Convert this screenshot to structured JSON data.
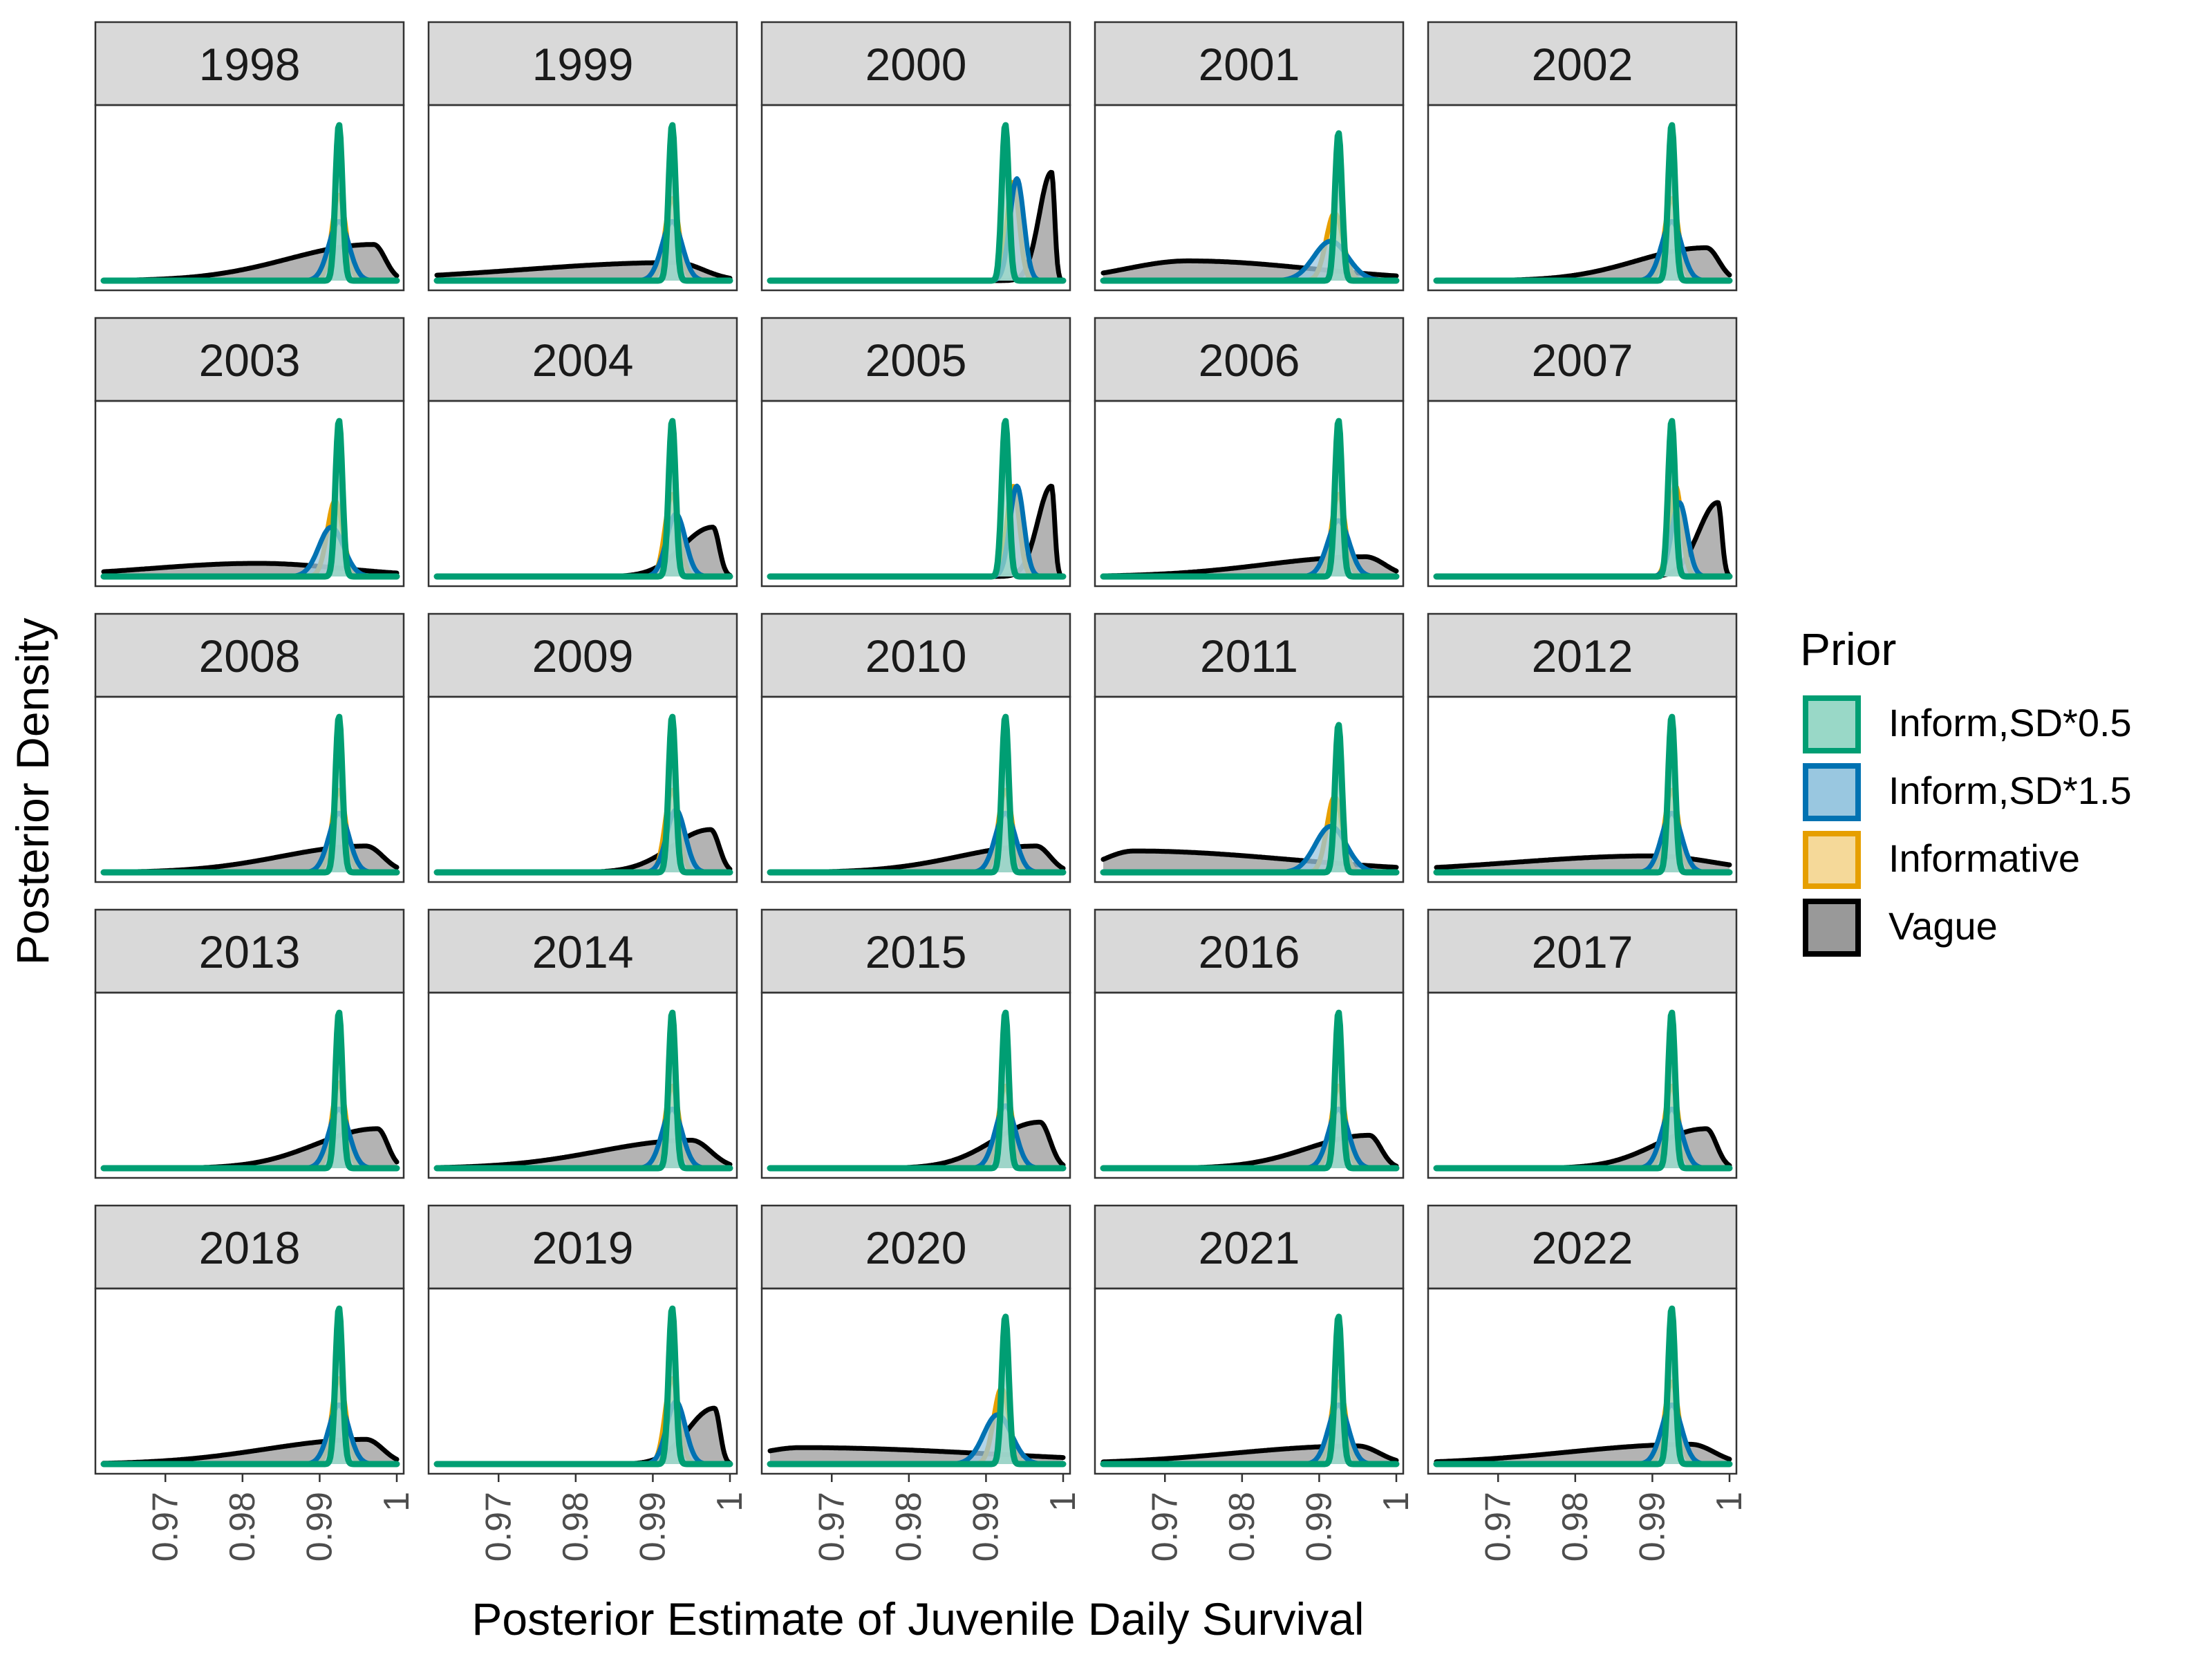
{
  "chart_data": {
    "type": "area",
    "subtype": "faceted-density",
    "title": "",
    "xlabel": "Posterior Estimate of Juvenile Daily Survival",
    "ylabel": "Posterior Density",
    "xlim": [
      0.962,
      1.0
    ],
    "x_ticks": [
      0.97,
      0.98,
      0.99,
      1.0
    ],
    "x_tick_labels": [
      "0.97",
      "0.98",
      "0.99",
      "1"
    ],
    "y_ticks_shown": false,
    "grid": false,
    "legend": {
      "title": "Prior",
      "position": "right",
      "entries": [
        "Inform,SD*0.5",
        "Inform,SD*1.5",
        "Informative",
        "Vague"
      ]
    },
    "series_colors": {
      "Inform,SD*0.5": {
        "line": "#009E73",
        "fill": "#99D8C7"
      },
      "Inform,SD*1.5": {
        "line": "#0072B2",
        "fill": "#99C7E0"
      },
      "Informative": {
        "line": "#E69F00",
        "fill": "#F5D999"
      },
      "Vague": {
        "line": "#000000",
        "fill": "#999999"
      }
    },
    "facet_layout": {
      "columns": 5,
      "rows": 5
    },
    "facets": [
      {
        "label": "1998",
        "series": [
          {
            "name": "Inform,SD*0.5",
            "mode": 0.9925,
            "sd": 0.00045,
            "peak": 0.95
          },
          {
            "name": "Inform,SD*1.5",
            "mode": 0.9925,
            "sd": 0.0013,
            "peak": 0.36
          },
          {
            "name": "Informative",
            "mode": 0.9925,
            "sd": 0.0009,
            "peak": 0.52
          },
          {
            "name": "Vague",
            "mode": 0.997,
            "sdL": 0.011,
            "sdR": 0.0015,
            "peak": 0.22
          }
        ]
      },
      {
        "label": "1999",
        "series": [
          {
            "name": "Inform,SD*0.5",
            "mode": 0.9925,
            "sd": 0.00045,
            "peak": 0.95
          },
          {
            "name": "Inform,SD*1.5",
            "mode": 0.9925,
            "sd": 0.0013,
            "peak": 0.36
          },
          {
            "name": "Informative",
            "mode": 0.9925,
            "sd": 0.0009,
            "peak": 0.5
          },
          {
            "name": "Vague",
            "mode": 0.993,
            "sdL": 0.02,
            "sdR": 0.0035,
            "peak": 0.11
          }
        ]
      },
      {
        "label": "2000",
        "series": [
          {
            "name": "Inform,SD*0.5",
            "mode": 0.9925,
            "sd": 0.00045,
            "peak": 0.95
          },
          {
            "name": "Inform,SD*1.5",
            "mode": 0.994,
            "sd": 0.0009,
            "peak": 0.62
          },
          {
            "name": "Informative",
            "mode": 0.9935,
            "sd": 0.0008,
            "peak": 0.6
          },
          {
            "name": "Vague",
            "mode": 0.9985,
            "sdL": 0.0016,
            "sdR": 0.0004,
            "peak": 0.66
          }
        ]
      },
      {
        "label": "2001",
        "series": [
          {
            "name": "Inform,SD*0.5",
            "mode": 0.9925,
            "sd": 0.00045,
            "peak": 0.9
          },
          {
            "name": "Inform,SD*1.5",
            "mode": 0.9915,
            "sd": 0.0022,
            "peak": 0.24
          },
          {
            "name": "Informative",
            "mode": 0.992,
            "sd": 0.0011,
            "peak": 0.41
          },
          {
            "name": "Vague",
            "mode": 0.973,
            "sdL": 0.008,
            "sdR": 0.016,
            "peak": 0.12
          }
        ]
      },
      {
        "label": "2002",
        "series": [
          {
            "name": "Inform,SD*0.5",
            "mode": 0.9925,
            "sd": 0.00045,
            "peak": 0.95
          },
          {
            "name": "Inform,SD*1.5",
            "mode": 0.9925,
            "sd": 0.0013,
            "peak": 0.36
          },
          {
            "name": "Informative",
            "mode": 0.9925,
            "sd": 0.0009,
            "peak": 0.5
          },
          {
            "name": "Vague",
            "mode": 0.997,
            "sdL": 0.009,
            "sdR": 0.0016,
            "peak": 0.2
          }
        ]
      },
      {
        "label": "2003",
        "series": [
          {
            "name": "Inform,SD*0.5",
            "mode": 0.9925,
            "sd": 0.00045,
            "peak": 0.95
          },
          {
            "name": "Inform,SD*1.5",
            "mode": 0.9915,
            "sd": 0.0016,
            "peak": 0.3
          },
          {
            "name": "Informative",
            "mode": 0.992,
            "sd": 0.001,
            "peak": 0.46
          },
          {
            "name": "Vague",
            "mode": 0.982,
            "sdL": 0.014,
            "sdR": 0.011,
            "peak": 0.08
          }
        ]
      },
      {
        "label": "2004",
        "series": [
          {
            "name": "Inform,SD*0.5",
            "mode": 0.9925,
            "sd": 0.00045,
            "peak": 0.95
          },
          {
            "name": "Inform,SD*1.5",
            "mode": 0.993,
            "sd": 0.0012,
            "peak": 0.38
          },
          {
            "name": "Informative",
            "mode": 0.9925,
            "sd": 0.0009,
            "peak": 0.5
          },
          {
            "name": "Vague",
            "mode": 0.9978,
            "sdL": 0.004,
            "sdR": 0.0008,
            "peak": 0.3
          }
        ]
      },
      {
        "label": "2005",
        "series": [
          {
            "name": "Inform,SD*0.5",
            "mode": 0.9925,
            "sd": 0.00045,
            "peak": 0.95
          },
          {
            "name": "Inform,SD*1.5",
            "mode": 0.994,
            "sd": 0.0009,
            "peak": 0.55
          },
          {
            "name": "Informative",
            "mode": 0.9935,
            "sd": 0.0008,
            "peak": 0.55
          },
          {
            "name": "Vague",
            "mode": 0.9985,
            "sdL": 0.0018,
            "sdR": 0.0004,
            "peak": 0.55
          }
        ]
      },
      {
        "label": "2006",
        "series": [
          {
            "name": "Inform,SD*0.5",
            "mode": 0.9925,
            "sd": 0.00045,
            "peak": 0.95
          },
          {
            "name": "Inform,SD*1.5",
            "mode": 0.9925,
            "sd": 0.0014,
            "peak": 0.34
          },
          {
            "name": "Informative",
            "mode": 0.9925,
            "sd": 0.0009,
            "peak": 0.5
          },
          {
            "name": "Vague",
            "mode": 0.996,
            "sdL": 0.013,
            "sdR": 0.0025,
            "peak": 0.12
          }
        ]
      },
      {
        "label": "2007",
        "series": [
          {
            "name": "Inform,SD*0.5",
            "mode": 0.9925,
            "sd": 0.00045,
            "peak": 0.95
          },
          {
            "name": "Inform,SD*1.5",
            "mode": 0.9935,
            "sd": 0.001,
            "peak": 0.45
          },
          {
            "name": "Informative",
            "mode": 0.993,
            "sd": 0.0008,
            "peak": 0.55
          },
          {
            "name": "Vague",
            "mode": 0.9985,
            "sdL": 0.0025,
            "sdR": 0.0005,
            "peak": 0.45
          }
        ]
      },
      {
        "label": "2008",
        "series": [
          {
            "name": "Inform,SD*0.5",
            "mode": 0.9925,
            "sd": 0.00045,
            "peak": 0.95
          },
          {
            "name": "Inform,SD*1.5",
            "mode": 0.9925,
            "sd": 0.0013,
            "peak": 0.36
          },
          {
            "name": "Informative",
            "mode": 0.9925,
            "sd": 0.0009,
            "peak": 0.5
          },
          {
            "name": "Vague",
            "mode": 0.996,
            "sdL": 0.011,
            "sdR": 0.0022,
            "peak": 0.16
          }
        ]
      },
      {
        "label": "2009",
        "series": [
          {
            "name": "Inform,SD*0.5",
            "mode": 0.9925,
            "sd": 0.00045,
            "peak": 0.95
          },
          {
            "name": "Inform,SD*1.5",
            "mode": 0.993,
            "sd": 0.0012,
            "peak": 0.38
          },
          {
            "name": "Informative",
            "mode": 0.9925,
            "sd": 0.0009,
            "peak": 0.5
          },
          {
            "name": "Vague",
            "mode": 0.9975,
            "sdL": 0.005,
            "sdR": 0.0011,
            "peak": 0.26
          }
        ]
      },
      {
        "label": "2010",
        "series": [
          {
            "name": "Inform,SD*0.5",
            "mode": 0.9925,
            "sd": 0.00045,
            "peak": 0.95
          },
          {
            "name": "Inform,SD*1.5",
            "mode": 0.9925,
            "sd": 0.0013,
            "peak": 0.36
          },
          {
            "name": "Informative",
            "mode": 0.9925,
            "sd": 0.0009,
            "peak": 0.5
          },
          {
            "name": "Vague",
            "mode": 0.9965,
            "sdL": 0.01,
            "sdR": 0.0018,
            "peak": 0.16
          }
        ]
      },
      {
        "label": "2011",
        "series": [
          {
            "name": "Inform,SD*0.5",
            "mode": 0.9925,
            "sd": 0.00045,
            "peak": 0.9
          },
          {
            "name": "Inform,SD*1.5",
            "mode": 0.9915,
            "sd": 0.002,
            "peak": 0.28
          },
          {
            "name": "Informative",
            "mode": 0.992,
            "sd": 0.001,
            "peak": 0.46
          },
          {
            "name": "Vague",
            "mode": 0.966,
            "sdL": 0.004,
            "sdR": 0.02,
            "peak": 0.13
          }
        ]
      },
      {
        "label": "2012",
        "series": [
          {
            "name": "Inform,SD*0.5",
            "mode": 0.9925,
            "sd": 0.00045,
            "peak": 0.95
          },
          {
            "name": "Inform,SD*1.5",
            "mode": 0.9925,
            "sd": 0.0013,
            "peak": 0.36
          },
          {
            "name": "Informative",
            "mode": 0.9925,
            "sd": 0.0009,
            "peak": 0.5
          },
          {
            "name": "Vague",
            "mode": 0.99,
            "sdL": 0.018,
            "sdR": 0.008,
            "peak": 0.1
          }
        ]
      },
      {
        "label": "2013",
        "series": [
          {
            "name": "Inform,SD*0.5",
            "mode": 0.9925,
            "sd": 0.00045,
            "peak": 0.95
          },
          {
            "name": "Inform,SD*1.5",
            "mode": 0.9925,
            "sd": 0.0013,
            "peak": 0.36
          },
          {
            "name": "Informative",
            "mode": 0.9925,
            "sd": 0.0009,
            "peak": 0.52
          },
          {
            "name": "Vague",
            "mode": 0.9975,
            "sdL": 0.008,
            "sdR": 0.0013,
            "peak": 0.24
          }
        ]
      },
      {
        "label": "2014",
        "series": [
          {
            "name": "Inform,SD*0.5",
            "mode": 0.9925,
            "sd": 0.00045,
            "peak": 0.95
          },
          {
            "name": "Inform,SD*1.5",
            "mode": 0.9925,
            "sd": 0.0013,
            "peak": 0.36
          },
          {
            "name": "Informative",
            "mode": 0.9925,
            "sd": 0.0009,
            "peak": 0.5
          },
          {
            "name": "Vague",
            "mode": 0.995,
            "sdL": 0.012,
            "sdR": 0.0025,
            "peak": 0.17
          }
        ]
      },
      {
        "label": "2015",
        "series": [
          {
            "name": "Inform,SD*0.5",
            "mode": 0.9925,
            "sd": 0.00045,
            "peak": 0.95
          },
          {
            "name": "Inform,SD*1.5",
            "mode": 0.9925,
            "sd": 0.0013,
            "peak": 0.38
          },
          {
            "name": "Informative",
            "mode": 0.9925,
            "sd": 0.0009,
            "peak": 0.5
          },
          {
            "name": "Vague",
            "mode": 0.997,
            "sdL": 0.006,
            "sdR": 0.0013,
            "peak": 0.28
          }
        ]
      },
      {
        "label": "2016",
        "series": [
          {
            "name": "Inform,SD*0.5",
            "mode": 0.9925,
            "sd": 0.00045,
            "peak": 0.95
          },
          {
            "name": "Inform,SD*1.5",
            "mode": 0.9925,
            "sd": 0.0013,
            "peak": 0.36
          },
          {
            "name": "Informative",
            "mode": 0.9925,
            "sd": 0.0009,
            "peak": 0.5
          },
          {
            "name": "Vague",
            "mode": 0.9965,
            "sdL": 0.008,
            "sdR": 0.0015,
            "peak": 0.2
          }
        ]
      },
      {
        "label": "2017",
        "series": [
          {
            "name": "Inform,SD*0.5",
            "mode": 0.9925,
            "sd": 0.00045,
            "peak": 0.95
          },
          {
            "name": "Inform,SD*1.5",
            "mode": 0.9925,
            "sd": 0.0013,
            "peak": 0.36
          },
          {
            "name": "Informative",
            "mode": 0.9925,
            "sd": 0.0009,
            "peak": 0.5
          },
          {
            "name": "Vague",
            "mode": 0.997,
            "sdL": 0.0065,
            "sdR": 0.0013,
            "peak": 0.24
          }
        ]
      },
      {
        "label": "2018",
        "series": [
          {
            "name": "Inform,SD*0.5",
            "mode": 0.9925,
            "sd": 0.00045,
            "peak": 0.95
          },
          {
            "name": "Inform,SD*1.5",
            "mode": 0.9925,
            "sd": 0.0013,
            "peak": 0.36
          },
          {
            "name": "Informative",
            "mode": 0.9925,
            "sd": 0.0009,
            "peak": 0.52
          },
          {
            "name": "Vague",
            "mode": 0.996,
            "sdL": 0.013,
            "sdR": 0.0022,
            "peak": 0.15
          }
        ]
      },
      {
        "label": "2019",
        "series": [
          {
            "name": "Inform,SD*0.5",
            "mode": 0.9925,
            "sd": 0.00045,
            "peak": 0.95
          },
          {
            "name": "Inform,SD*1.5",
            "mode": 0.993,
            "sd": 0.0012,
            "peak": 0.38
          },
          {
            "name": "Informative",
            "mode": 0.9925,
            "sd": 0.0009,
            "peak": 0.52
          },
          {
            "name": "Vague",
            "mode": 0.998,
            "sdL": 0.0035,
            "sdR": 0.0007,
            "peak": 0.34
          }
        ]
      },
      {
        "label": "2020",
        "series": [
          {
            "name": "Inform,SD*0.5",
            "mode": 0.9925,
            "sd": 0.00045,
            "peak": 0.9
          },
          {
            "name": "Inform,SD*1.5",
            "mode": 0.9915,
            "sd": 0.0018,
            "peak": 0.3
          },
          {
            "name": "Informative",
            "mode": 0.992,
            "sd": 0.001,
            "peak": 0.46
          },
          {
            "name": "Vague",
            "mode": 0.966,
            "sdL": 0.006,
            "sdR": 0.025,
            "peak": 0.1
          }
        ]
      },
      {
        "label": "2021",
        "series": [
          {
            "name": "Inform,SD*0.5",
            "mode": 0.9925,
            "sd": 0.00045,
            "peak": 0.9
          },
          {
            "name": "Inform,SD*1.5",
            "mode": 0.9925,
            "sd": 0.0013,
            "peak": 0.36
          },
          {
            "name": "Informative",
            "mode": 0.9925,
            "sd": 0.0009,
            "peak": 0.5
          },
          {
            "name": "Vague",
            "mode": 0.995,
            "sdL": 0.016,
            "sdR": 0.0028,
            "peak": 0.11
          }
        ]
      },
      {
        "label": "2022",
        "series": [
          {
            "name": "Inform,SD*0.5",
            "mode": 0.9925,
            "sd": 0.00045,
            "peak": 0.95
          },
          {
            "name": "Inform,SD*1.5",
            "mode": 0.9925,
            "sd": 0.0013,
            "peak": 0.36
          },
          {
            "name": "Informative",
            "mode": 0.9925,
            "sd": 0.0009,
            "peak": 0.5
          },
          {
            "name": "Vague",
            "mode": 0.995,
            "sdL": 0.016,
            "sdR": 0.003,
            "peak": 0.12
          }
        ]
      }
    ]
  }
}
